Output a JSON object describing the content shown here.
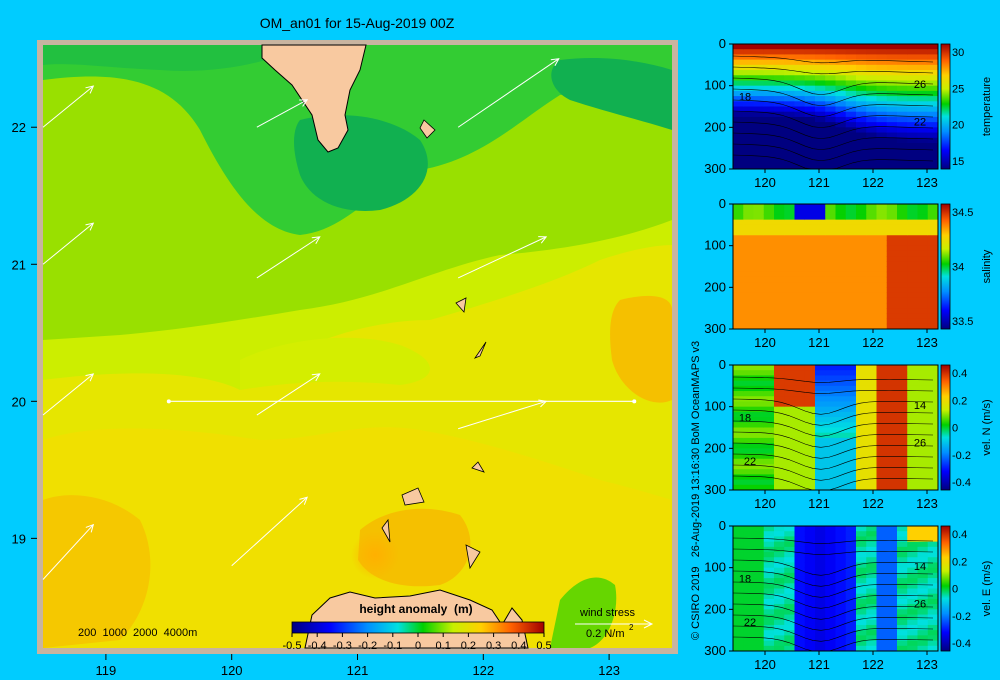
{
  "title": "OM_an01 for 15-Aug-2019 00Z",
  "credit": "© CSIRO 2019   26-Aug-2019 13:16:30 BoM OceanMAPS v3",
  "colors": {
    "background": "#00ccff",
    "land": "#f8c9a0",
    "frame": "#c8b4a0"
  },
  "chart_data": [
    {
      "type": "heatmap",
      "name": "map",
      "title": "OM_an01 for 15-Aug-2019 00Z",
      "xlim": [
        118.5,
        123.5
      ],
      "ylim": [
        18.2,
        22.6
      ],
      "x_ticks": [
        "119",
        "120",
        "121",
        "122",
        "123"
      ],
      "y_ticks": [
        "19",
        "20",
        "21",
        "22"
      ],
      "section_line": {
        "lat": 20,
        "lon_start": 119.5,
        "lon_end": 123.2
      },
      "depth_legend": "200  1000  2000  4000m",
      "wind_arrows_lonlat": [
        [
          118.5,
          22.0
        ],
        [
          120.2,
          22.0
        ],
        [
          121.8,
          22.0
        ],
        [
          118.5,
          21.0
        ],
        [
          120.2,
          20.9
        ],
        [
          121.8,
          20.9
        ],
        [
          118.5,
          19.9
        ],
        [
          120.2,
          19.9
        ],
        [
          121.8,
          19.8
        ],
        [
          118.5,
          18.7
        ],
        [
          120.0,
          18.8
        ]
      ],
      "wind_arrow_ends": [
        [
          118.9,
          22.3
        ],
        [
          120.6,
          22.2
        ],
        [
          122.6,
          22.5
        ],
        [
          118.9,
          21.3
        ],
        [
          120.7,
          21.2
        ],
        [
          122.5,
          21.2
        ],
        [
          118.9,
          20.2
        ],
        [
          120.7,
          20.2
        ],
        [
          122.5,
          20.0
        ],
        [
          118.9,
          19.1
        ],
        [
          120.6,
          19.3
        ]
      ],
      "wind_stress": {
        "label": "wind stress",
        "value_label": "0.2 N/m",
        "exponent": "2"
      },
      "colorbar": {
        "label": "height anomaly  (m)",
        "ticks": [
          "-0.5",
          "-0.4",
          "-0.3",
          "-0.2",
          "-0.1",
          "0",
          "0.1",
          "0.2",
          "0.3",
          "0.4",
          "0.5"
        ]
      }
    },
    {
      "type": "heatmap",
      "name": "temperature",
      "ylabel": "temperature",
      "x_ticks": [
        "120",
        "121",
        "122",
        "123"
      ],
      "y_ticks": [
        "0",
        "100",
        "200",
        "300"
      ],
      "cbar_ticks": [
        "30",
        "25",
        "20",
        "15"
      ],
      "contour_labels": [
        "18",
        "26",
        "22"
      ]
    },
    {
      "type": "heatmap",
      "name": "salinity",
      "ylabel": "salinity",
      "x_ticks": [
        "120",
        "121",
        "122",
        "123"
      ],
      "y_ticks": [
        "0",
        "100",
        "200",
        "300"
      ],
      "cbar_ticks": [
        "34.5",
        "34",
        "33.5"
      ],
      "contour_labels": []
    },
    {
      "type": "heatmap",
      "name": "vel-n",
      "ylabel": "vel. N  (m/s)",
      "x_ticks": [
        "120",
        "121",
        "122",
        "123"
      ],
      "y_ticks": [
        "0",
        "100",
        "200",
        "300"
      ],
      "cbar_ticks": [
        "0.4",
        "0.2",
        "0",
        "-0.2",
        "-0.4"
      ],
      "contour_labels": [
        "18",
        "14",
        "26",
        "22"
      ]
    },
    {
      "type": "heatmap",
      "name": "vel-e",
      "ylabel": "vel. E  (m/s)",
      "x_ticks": [
        "120",
        "121",
        "122",
        "123"
      ],
      "y_ticks": [
        "0",
        "100",
        "200",
        "300"
      ],
      "cbar_ticks": [
        "0.4",
        "0.2",
        "0",
        "-0.2",
        "-0.4"
      ],
      "contour_labels": [
        "18",
        "14",
        "26",
        "22"
      ]
    }
  ]
}
